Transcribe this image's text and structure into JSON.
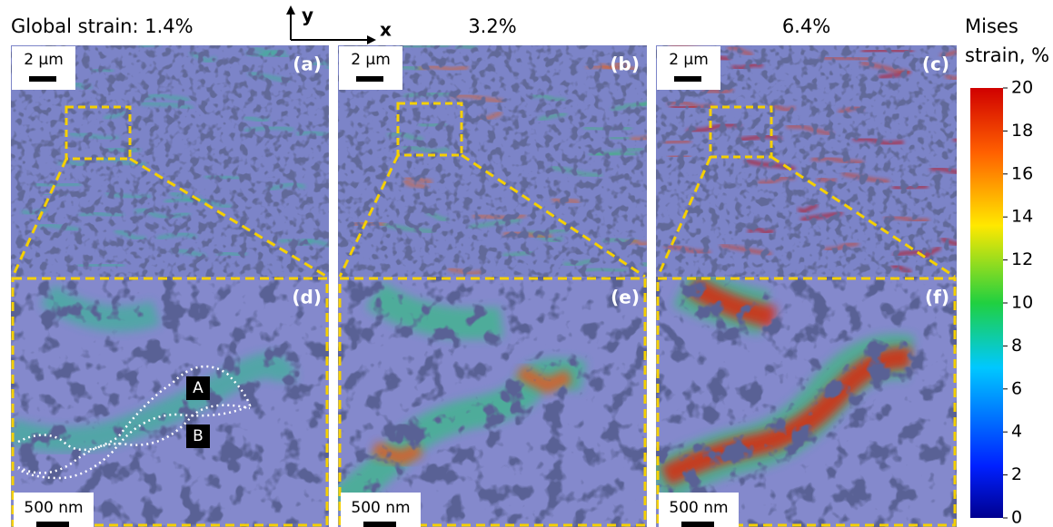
{
  "header": {
    "strains": [
      "Global strain: 1.4%",
      "3.2%",
      "6.4%"
    ],
    "axis_y": "y",
    "axis_x": "x"
  },
  "panels": {
    "top_labels": [
      "(a)",
      "(b)",
      "(c)"
    ],
    "bottom_labels": [
      "(d)",
      "(e)",
      "(f)"
    ],
    "top_scale": [
      "2 µm",
      "2 µm",
      "2 µm"
    ],
    "bottom_scale": [
      "500 nm",
      "500 nm",
      "500 nm"
    ]
  },
  "regions": [
    "A",
    "B"
  ],
  "colorbar": {
    "title": [
      "Mises",
      "strain, %"
    ],
    "lim": [
      0,
      20
    ],
    "ticks": [
      0,
      2,
      4,
      6,
      8,
      10,
      12,
      14,
      16,
      18,
      20
    ]
  }
}
